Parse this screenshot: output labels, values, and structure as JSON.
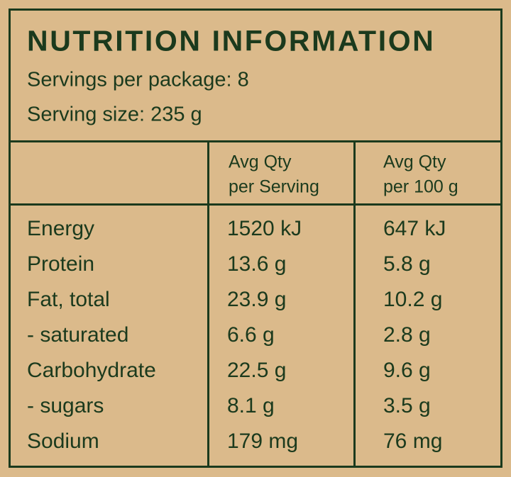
{
  "header": {
    "title": "NUTRITION INFORMATION",
    "servings_per_package": "Servings per package: 8",
    "serving_size": "Serving size: 235 g"
  },
  "table": {
    "columns": [
      [
        "Avg Qty",
        "per Serving"
      ],
      [
        "Avg Qty",
        "per 100 g"
      ]
    ],
    "rows": [
      [
        "Energy",
        "1520 kJ",
        "647 kJ"
      ],
      [
        "Protein",
        "13.6 g",
        "5.8 g"
      ],
      [
        "Fat, total",
        "23.9 g",
        "10.2 g"
      ],
      [
        "- saturated",
        "6.6 g",
        "2.8 g"
      ],
      [
        "Carbohydrate",
        "22.5 g",
        "9.6 g"
      ],
      [
        "- sugars",
        "8.1 g",
        "3.5 g"
      ],
      [
        "Sodium",
        "179 mg",
        "76 mg"
      ]
    ]
  }
}
